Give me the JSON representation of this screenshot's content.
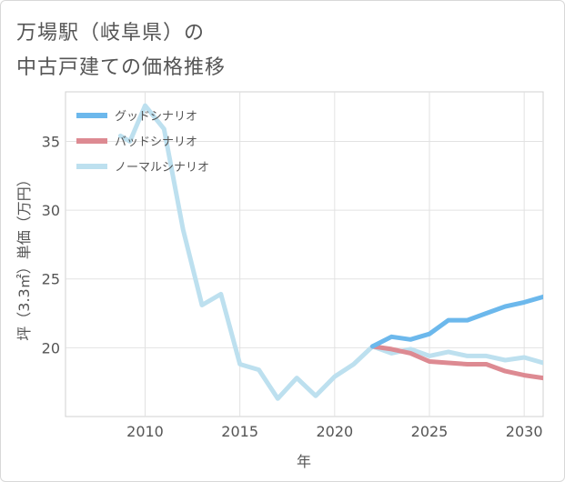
{
  "title_line1": "万場駅（岐阜県）の",
  "title_line2": "中古戸建ての価格推移",
  "chart_data": {
    "type": "line",
    "xlabel": "年",
    "ylabel": "坪（3.3㎡）単価（万円）",
    "xlim": [
      2005.8,
      2031.0
    ],
    "ylim": [
      15.0,
      38.6
    ],
    "xticks": [
      2010,
      2015,
      2020,
      2025,
      2030
    ],
    "yticks": [
      20,
      25,
      30,
      35
    ],
    "tick_labels_x": [
      "2010",
      "2015",
      "2020",
      "2025",
      "2030"
    ],
    "tick_labels_y": [
      "20",
      "25",
      "30",
      "35"
    ],
    "grid": true,
    "legend_position": "top-left",
    "series": [
      {
        "name": "グッドシナリオ",
        "color": "#6cb8ec",
        "x": [
          2022,
          2023,
          2024,
          2025,
          2026,
          2027,
          2028,
          2029,
          2030,
          2031
        ],
        "values": [
          20.1,
          20.8,
          20.6,
          21.0,
          22.0,
          22.0,
          22.5,
          23.0,
          23.3,
          23.7
        ]
      },
      {
        "name": "バッドシナリオ",
        "color": "#dd8a92",
        "x": [
          2022,
          2023,
          2024,
          2025,
          2026,
          2027,
          2028,
          2029,
          2030,
          2031
        ],
        "values": [
          20.1,
          19.9,
          19.6,
          19.0,
          18.9,
          18.8,
          18.8,
          18.3,
          18.0,
          17.8
        ]
      },
      {
        "name": "ノーマルシナリオ",
        "color": "#bde0ef",
        "x": [
          2008.7,
          2009.2,
          2010,
          2011,
          2012,
          2013,
          2014,
          2015,
          2016,
          2017,
          2018,
          2019,
          2020,
          2021,
          2022,
          2023,
          2024,
          2025,
          2026,
          2027,
          2028,
          2029,
          2030,
          2031
        ],
        "values": [
          35.4,
          35.0,
          37.6,
          35.9,
          28.6,
          23.1,
          23.9,
          18.8,
          18.4,
          16.3,
          17.8,
          16.5,
          17.9,
          18.8,
          20.1,
          19.6,
          19.9,
          19.4,
          19.7,
          19.4,
          19.4,
          19.1,
          19.3,
          18.9
        ]
      }
    ]
  }
}
